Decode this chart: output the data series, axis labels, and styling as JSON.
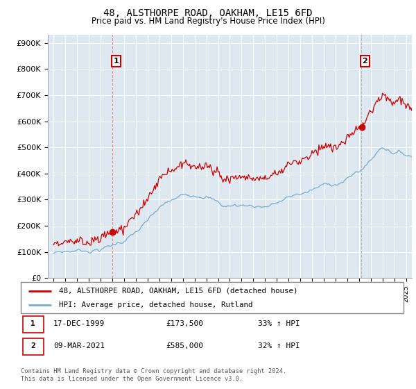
{
  "title": "48, ALSTHORPE ROAD, OAKHAM, LE15 6FD",
  "subtitle": "Price paid vs. HM Land Registry's House Price Index (HPI)",
  "ylabel_ticks": [
    "£0",
    "£100K",
    "£200K",
    "£300K",
    "£400K",
    "£500K",
    "£600K",
    "£700K",
    "£800K",
    "£900K"
  ],
  "ytick_vals": [
    0,
    100000,
    200000,
    300000,
    400000,
    500000,
    600000,
    700000,
    800000,
    900000
  ],
  "ylim": [
    0,
    930000
  ],
  "purchase1": {
    "date": "17-DEC-1999",
    "price": 173500,
    "label": "1",
    "x_year": 2000.0
  },
  "purchase2": {
    "date": "09-MAR-2021",
    "price": 585000,
    "label": "2",
    "x_year": 2021.2
  },
  "legend_house": "48, ALSTHORPE ROAD, OAKHAM, LE15 6FD (detached house)",
  "legend_hpi": "HPI: Average price, detached house, Rutland",
  "footer": "Contains HM Land Registry data © Crown copyright and database right 2024.\nThis data is licensed under the Open Government Licence v3.0.",
  "line_color_red": "#cc0000",
  "line_color_blue": "#7aaacc",
  "background_color": "#ffffff",
  "plot_bg_color": "#dde8f0",
  "grid_color": "#ffffff",
  "xmin": 1994.5,
  "xmax": 2025.5
}
